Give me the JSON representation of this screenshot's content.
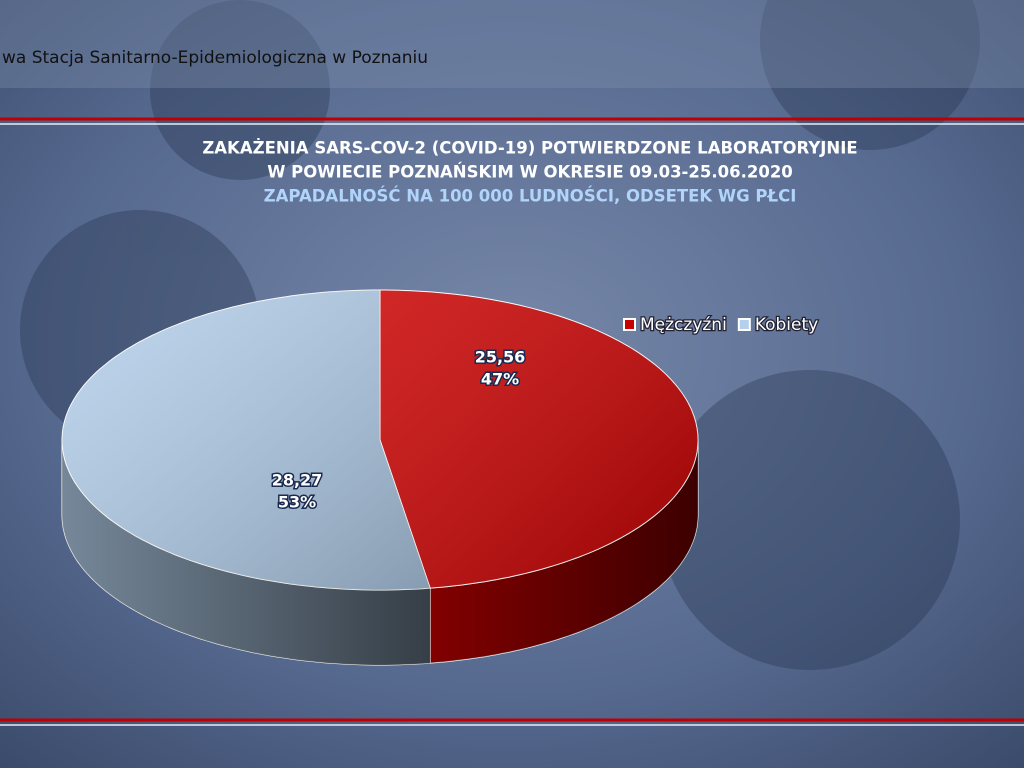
{
  "header": "wa Stacja Sanitarno-Epidemiologiczna w Poznaniu",
  "chart_data": {
    "type": "pie3d",
    "title": [
      "ZAKAŻENIA SARS-COV-2 (COVID-19) POTWIERDZONE LABORATORYJNIE",
      "W POWIECIE POZNAŃSKIM W OKRESIE 09.03-25.06.2020"
    ],
    "subtitle": "ZAPADALNOŚĆ NA 100 000 LUDNOŚCI, ODSETEK WG PŁCI",
    "categories": [
      "Mężczyźni",
      "Kobiety"
    ],
    "values": [
      25.56,
      28.27
    ],
    "value_labels": [
      "25,56",
      "28,27"
    ],
    "percentages": [
      47,
      53
    ],
    "percentage_labels": [
      "47%",
      "53%"
    ],
    "colors": [
      "#c80000",
      "#b4d0ec"
    ],
    "legend": "top-right"
  }
}
